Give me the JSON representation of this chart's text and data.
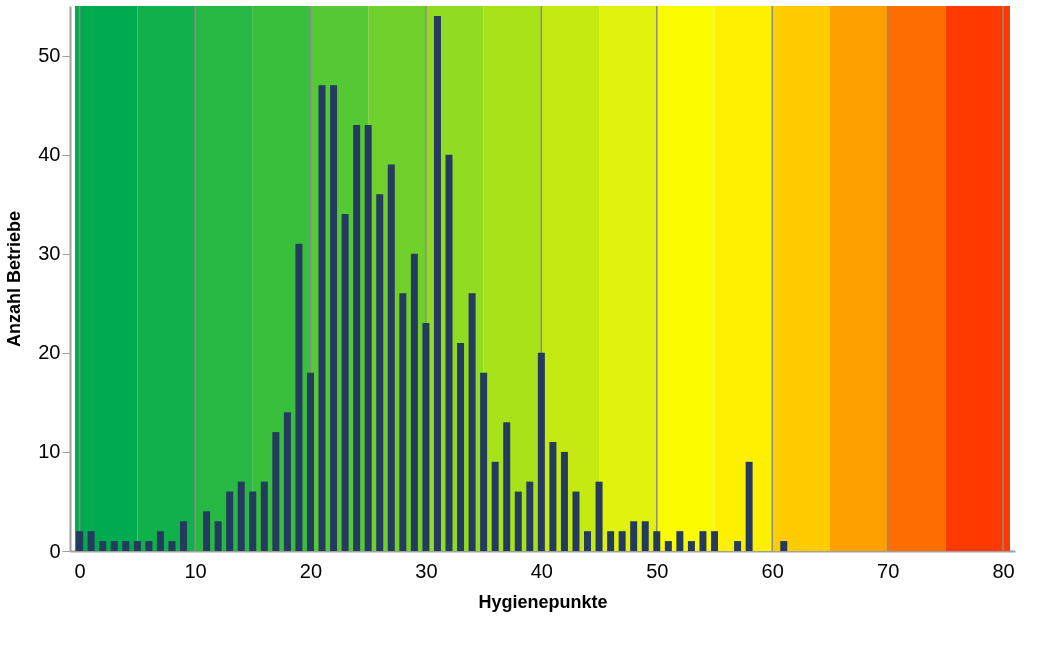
{
  "chart_data": {
    "type": "bar",
    "xlabel": "Hygienepunkte",
    "ylabel": "Anzahl Betriebe",
    "x": [
      0,
      1,
      2,
      3,
      4,
      5,
      6,
      7,
      8,
      9,
      10,
      11,
      12,
      13,
      14,
      15,
      16,
      17,
      18,
      19,
      20,
      21,
      22,
      23,
      24,
      25,
      26,
      27,
      28,
      29,
      30,
      31,
      32,
      33,
      34,
      35,
      36,
      37,
      38,
      39,
      40,
      41,
      42,
      43,
      44,
      45,
      46,
      47,
      48,
      49,
      50,
      51,
      52,
      53,
      54,
      55,
      56,
      57,
      58,
      59,
      60,
      61
    ],
    "series": [
      {
        "color": "#243a5e",
        "values": [
          2,
          2,
          1,
          1,
          1,
          1,
          1,
          2,
          1,
          3,
          0,
          4,
          3,
          6,
          7,
          6,
          7,
          12,
          14,
          31,
          18,
          47,
          47,
          34,
          43,
          43,
          36,
          39,
          26,
          30,
          23,
          54,
          40,
          21,
          26,
          18,
          9,
          13,
          6,
          7,
          20,
          11,
          10,
          6,
          2,
          7,
          2,
          2,
          3,
          3,
          2,
          1,
          2,
          1,
          2,
          2,
          0,
          1,
          9,
          0,
          0,
          1
        ]
      }
    ],
    "xlim": [
      -0.4,
      80.6
    ],
    "xticks": [
      0,
      10,
      20,
      30,
      40,
      50,
      60,
      70,
      80
    ],
    "ylim": [
      0,
      55
    ],
    "yticks": [
      0,
      10,
      20,
      30,
      40,
      50
    ],
    "grid": "x",
    "bands": [
      {
        "axis": "x",
        "from": -0.4,
        "to": 5,
        "color": "#00aa4f"
      },
      {
        "axis": "x",
        "from": 5,
        "to": 10,
        "color": "#10b04b"
      },
      {
        "axis": "x",
        "from": 10,
        "to": 15,
        "color": "#28b844"
      },
      {
        "axis": "x",
        "from": 15,
        "to": 20,
        "color": "#38bf3c"
      },
      {
        "axis": "x",
        "from": 20,
        "to": 25,
        "color": "#55c835"
      },
      {
        "axis": "x",
        "from": 25,
        "to": 30,
        "color": "#70d02c"
      },
      {
        "axis": "x",
        "from": 30,
        "to": 35,
        "color": "#90dc22"
      },
      {
        "axis": "x",
        "from": 35,
        "to": 40,
        "color": "#a8e31a"
      },
      {
        "axis": "x",
        "from": 40,
        "to": 45,
        "color": "#c4ea12"
      },
      {
        "axis": "x",
        "from": 45,
        "to": 50,
        "color": "#e0f20a"
      },
      {
        "axis": "x",
        "from": 50,
        "to": 55,
        "color": "#fcfc00"
      },
      {
        "axis": "x",
        "from": 55,
        "to": 60,
        "color": "#fff000"
      },
      {
        "axis": "x",
        "from": 60,
        "to": 65,
        "color": "#ffcc00"
      },
      {
        "axis": "x",
        "from": 65,
        "to": 70,
        "color": "#ffa000"
      },
      {
        "axis": "x",
        "from": 70,
        "to": 75,
        "color": "#ff6e00"
      },
      {
        "axis": "x",
        "from": 75,
        "to": 80.6,
        "color": "#ff3a00"
      }
    ]
  }
}
